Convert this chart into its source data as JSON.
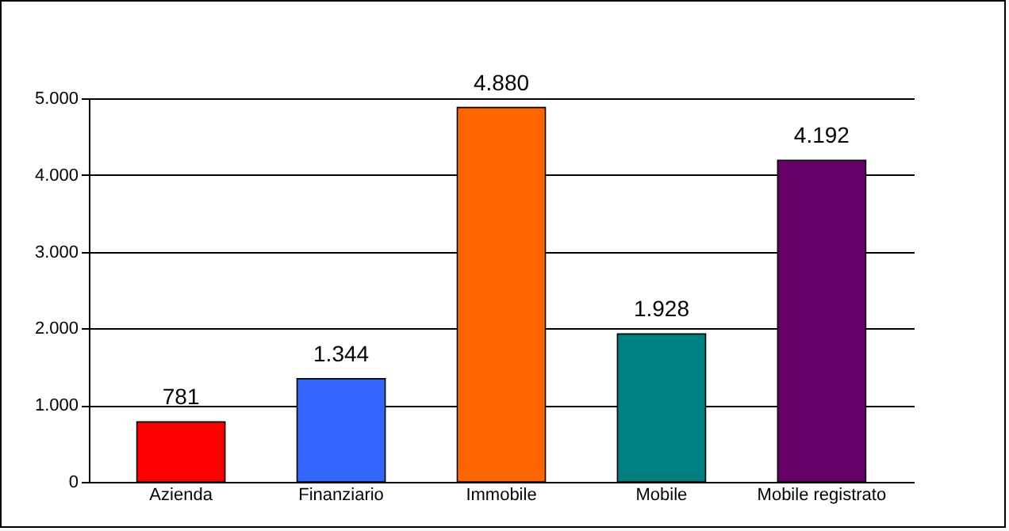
{
  "chart_data": {
    "type": "bar",
    "categories": [
      "Azienda",
      "Finanziario",
      "Immobile",
      "Mobile",
      "Mobile registrato"
    ],
    "values": [
      781,
      1344,
      4880,
      1928,
      4192
    ],
    "colors": [
      "#ff0000",
      "#3366ff",
      "#ff6600",
      "#008080",
      "#660066"
    ],
    "value_labels": [
      "781",
      "1.344",
      "4.880",
      "1.928",
      "4.192"
    ],
    "ylim": [
      0,
      5000
    ],
    "yticks": [
      {
        "value": 0,
        "label": "0"
      },
      {
        "value": 1000,
        "label": "1.000"
      },
      {
        "value": 2000,
        "label": "2.000"
      },
      {
        "value": 3000,
        "label": "3.000"
      },
      {
        "value": 4000,
        "label": "4.000"
      },
      {
        "value": 5000,
        "label": "5.000"
      }
    ],
    "grid": "y"
  }
}
